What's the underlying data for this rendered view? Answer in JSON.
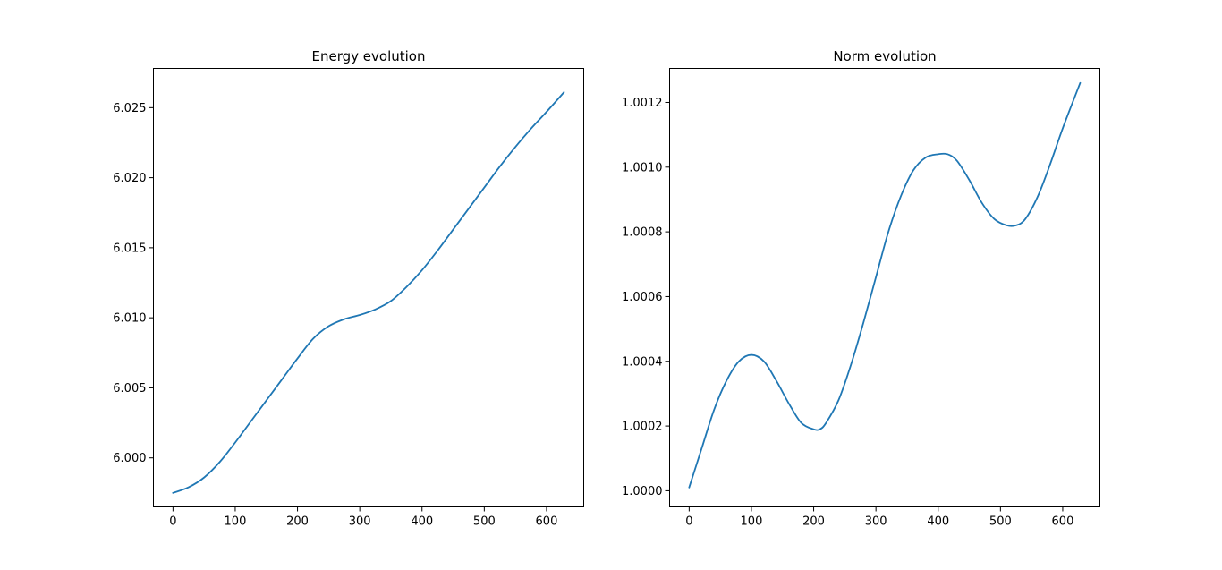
{
  "chart_data": [
    {
      "type": "line",
      "title": "Energy evolution",
      "xlabel": "",
      "ylabel": "",
      "xlim": [
        -31.4,
        659.7
      ],
      "ylim": [
        5.9965,
        6.0278
      ],
      "xticks": [
        0,
        100,
        200,
        300,
        400,
        500,
        600
      ],
      "yticks": [
        6.0,
        6.005,
        6.01,
        6.015,
        6.02,
        6.025
      ],
      "ytick_labels": [
        "6.000",
        "6.005",
        "6.010",
        "6.015",
        "6.020",
        "6.025"
      ],
      "grid": false,
      "series": [
        {
          "color": "#1f77b4",
          "x": [
            0,
            25,
            50,
            75,
            100,
            125,
            150,
            175,
            200,
            225,
            250,
            275,
            300,
            325,
            350,
            375,
            400,
            425,
            450,
            475,
            500,
            525,
            550,
            575,
            600,
            628
          ],
          "y": [
            5.9975,
            5.9979,
            5.9986,
            5.9997,
            6.0011,
            6.0026,
            6.0041,
            6.0056,
            6.0071,
            6.0085,
            6.0094,
            6.0099,
            6.0102,
            6.0106,
            6.0112,
            6.0122,
            6.0134,
            6.0148,
            6.0163,
            6.0178,
            6.0193,
            6.0208,
            6.0222,
            6.0235,
            6.0247,
            6.0261
          ]
        }
      ]
    },
    {
      "type": "line",
      "title": "Norm evolution",
      "xlabel": "",
      "ylabel": "",
      "xlim": [
        -31.4,
        659.7
      ],
      "ylim": [
        0.99995,
        1.001305
      ],
      "xticks": [
        0,
        100,
        200,
        300,
        400,
        500,
        600
      ],
      "yticks": [
        1.0,
        1.0002,
        1.0004,
        1.0006,
        1.0008,
        1.001,
        1.0012
      ],
      "ytick_labels": [
        "1.0000",
        "1.0002",
        "1.0004",
        "1.0006",
        "1.0008",
        "1.0010",
        "1.0012"
      ],
      "grid": false,
      "series": [
        {
          "color": "#1f77b4",
          "x": [
            0,
            20,
            40,
            60,
            80,
            100,
            120,
            140,
            160,
            180,
            200,
            210,
            220,
            240,
            260,
            280,
            300,
            320,
            340,
            360,
            380,
            400,
            415,
            430,
            450,
            470,
            490,
            510,
            525,
            540,
            560,
            580,
            600,
            628
          ],
          "y": [
            1.00001,
            1.00013,
            1.00025,
            1.00034,
            1.0004,
            1.00042,
            1.0004,
            1.00034,
            1.00027,
            1.00021,
            1.00019,
            1.00019,
            1.00021,
            1.00028,
            1.00039,
            1.00052,
            1.00066,
            1.0008,
            1.00091,
            1.00099,
            1.00103,
            1.00104,
            1.00104,
            1.00102,
            1.00096,
            1.00089,
            1.00084,
            1.00082,
            1.00082,
            1.00084,
            1.00091,
            1.00101,
            1.00112,
            1.00126
          ]
        }
      ]
    }
  ]
}
